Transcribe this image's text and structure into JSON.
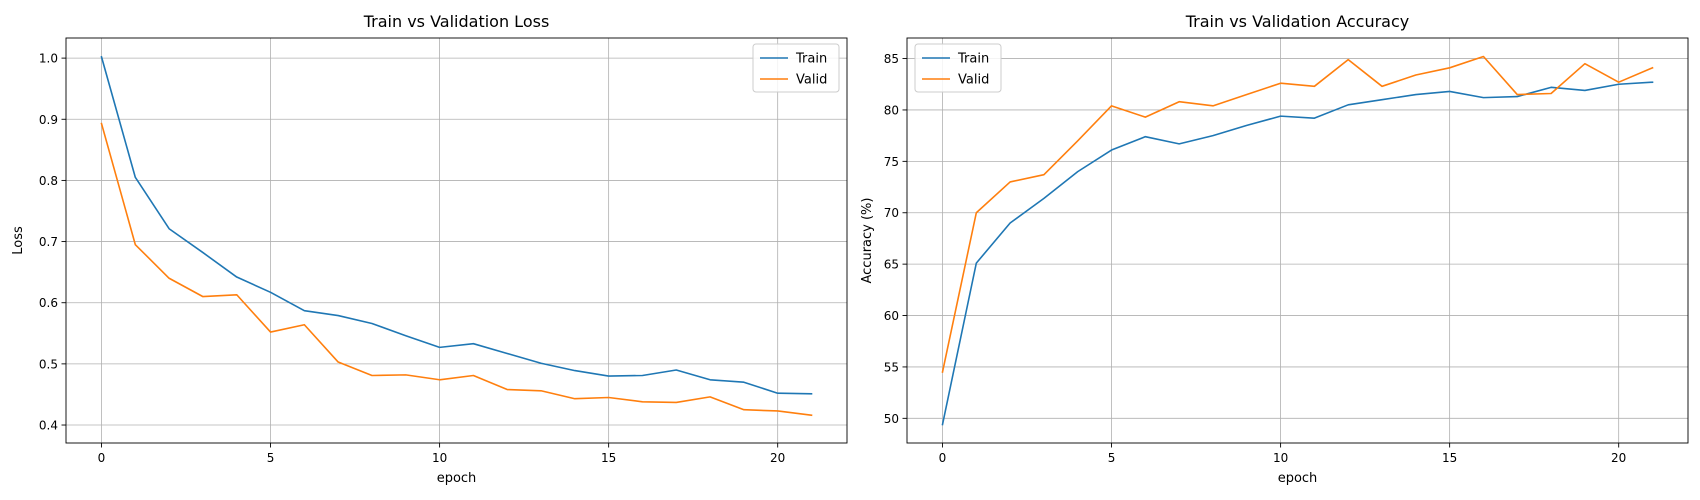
{
  "chart_data": [
    {
      "type": "line",
      "title": "Train vs Validation Loss",
      "xlabel": "epoch",
      "ylabel": "Loss",
      "xlim": [
        -1.05,
        22.05
      ],
      "ylim": [
        0.3706,
        1.0329
      ],
      "xticks": [
        0,
        5,
        10,
        15,
        20
      ],
      "yticks": [
        0.4,
        0.5,
        0.6,
        0.7,
        0.8,
        0.9,
        1.0
      ],
      "ytick_labels": [
        "0.4",
        "0.5",
        "0.6",
        "0.7",
        "0.8",
        "0.9",
        "1.0"
      ],
      "grid": true,
      "legend_position": "top-right",
      "x": [
        0,
        1,
        2,
        3,
        4,
        5,
        6,
        7,
        8,
        9,
        10,
        11,
        12,
        13,
        14,
        15,
        16,
        17,
        18,
        19,
        20,
        21
      ],
      "series": [
        {
          "name": "Train",
          "color": "#1f77b4",
          "values": [
            1.002,
            0.805,
            0.721,
            0.682,
            0.642,
            0.617,
            0.587,
            0.579,
            0.566,
            0.546,
            0.527,
            0.533,
            0.517,
            0.501,
            0.489,
            0.48,
            0.481,
            0.49,
            0.474,
            0.47,
            0.452,
            0.451
          ]
        },
        {
          "name": "Valid",
          "color": "#ff7f0e",
          "values": [
            0.893,
            0.695,
            0.64,
            0.61,
            0.613,
            0.552,
            0.564,
            0.503,
            0.481,
            0.482,
            0.474,
            0.481,
            0.458,
            0.456,
            0.443,
            0.445,
            0.438,
            0.437,
            0.446,
            0.425,
            0.423,
            0.416
          ]
        }
      ]
    },
    {
      "type": "line",
      "title": "Train vs Validation Accuracy",
      "xlabel": "epoch",
      "ylabel": "Accuracy (%)",
      "xlim": [
        -1.05,
        22.05
      ],
      "ylim": [
        47.6,
        87.0
      ],
      "xticks": [
        0,
        5,
        10,
        15,
        20
      ],
      "yticks": [
        50,
        55,
        60,
        65,
        70,
        75,
        80,
        85
      ],
      "ytick_labels": [
        "50",
        "55",
        "60",
        "65",
        "70",
        "75",
        "80",
        "85"
      ],
      "grid": true,
      "legend_position": "top-left",
      "x": [
        0,
        1,
        2,
        3,
        4,
        5,
        6,
        7,
        8,
        9,
        10,
        11,
        12,
        13,
        14,
        15,
        16,
        17,
        18,
        19,
        20,
        21
      ],
      "series": [
        {
          "name": "Train",
          "color": "#1f77b4",
          "values": [
            49.4,
            65.1,
            69.0,
            71.4,
            74.0,
            76.1,
            77.4,
            76.7,
            77.5,
            78.5,
            79.4,
            79.2,
            80.5,
            81.0,
            81.5,
            81.8,
            81.2,
            81.3,
            82.2,
            81.9,
            82.5,
            82.7
          ]
        },
        {
          "name": "Valid",
          "color": "#ff7f0e",
          "values": [
            54.5,
            70.0,
            73.0,
            73.7,
            77.0,
            80.4,
            79.3,
            80.8,
            80.4,
            81.5,
            82.6,
            82.3,
            84.9,
            82.3,
            83.4,
            84.1,
            85.2,
            81.5,
            81.6,
            84.5,
            82.7,
            84.1
          ]
        }
      ]
    }
  ]
}
